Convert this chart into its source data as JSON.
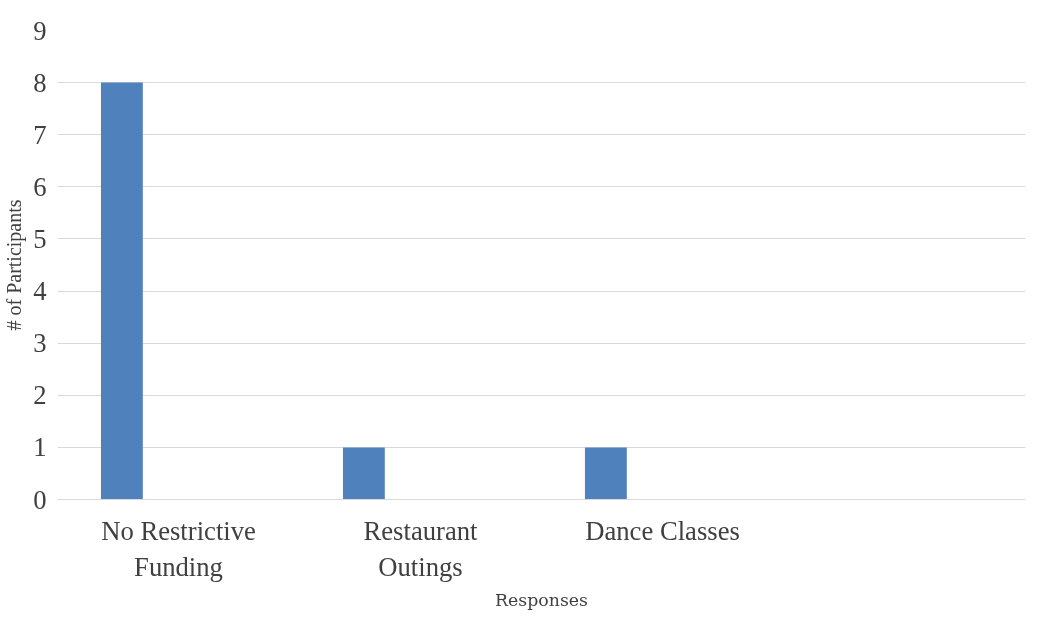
{
  "chart_data": {
    "type": "bar",
    "categories": [
      "No Restrictive Funding",
      "Restaurant Outings",
      "Dance Classes",
      null
    ],
    "series": [
      {
        "color": "#4f81bd",
        "values": [
          8,
          1,
          1,
          null
        ]
      }
    ],
    "xlabel": "Responses",
    "ylabel": "# of Participants",
    "ylim": [
      0,
      9
    ],
    "yticks": [
      0,
      1,
      2,
      3,
      4,
      5,
      6,
      7,
      8,
      9
    ],
    "grid": "y"
  }
}
